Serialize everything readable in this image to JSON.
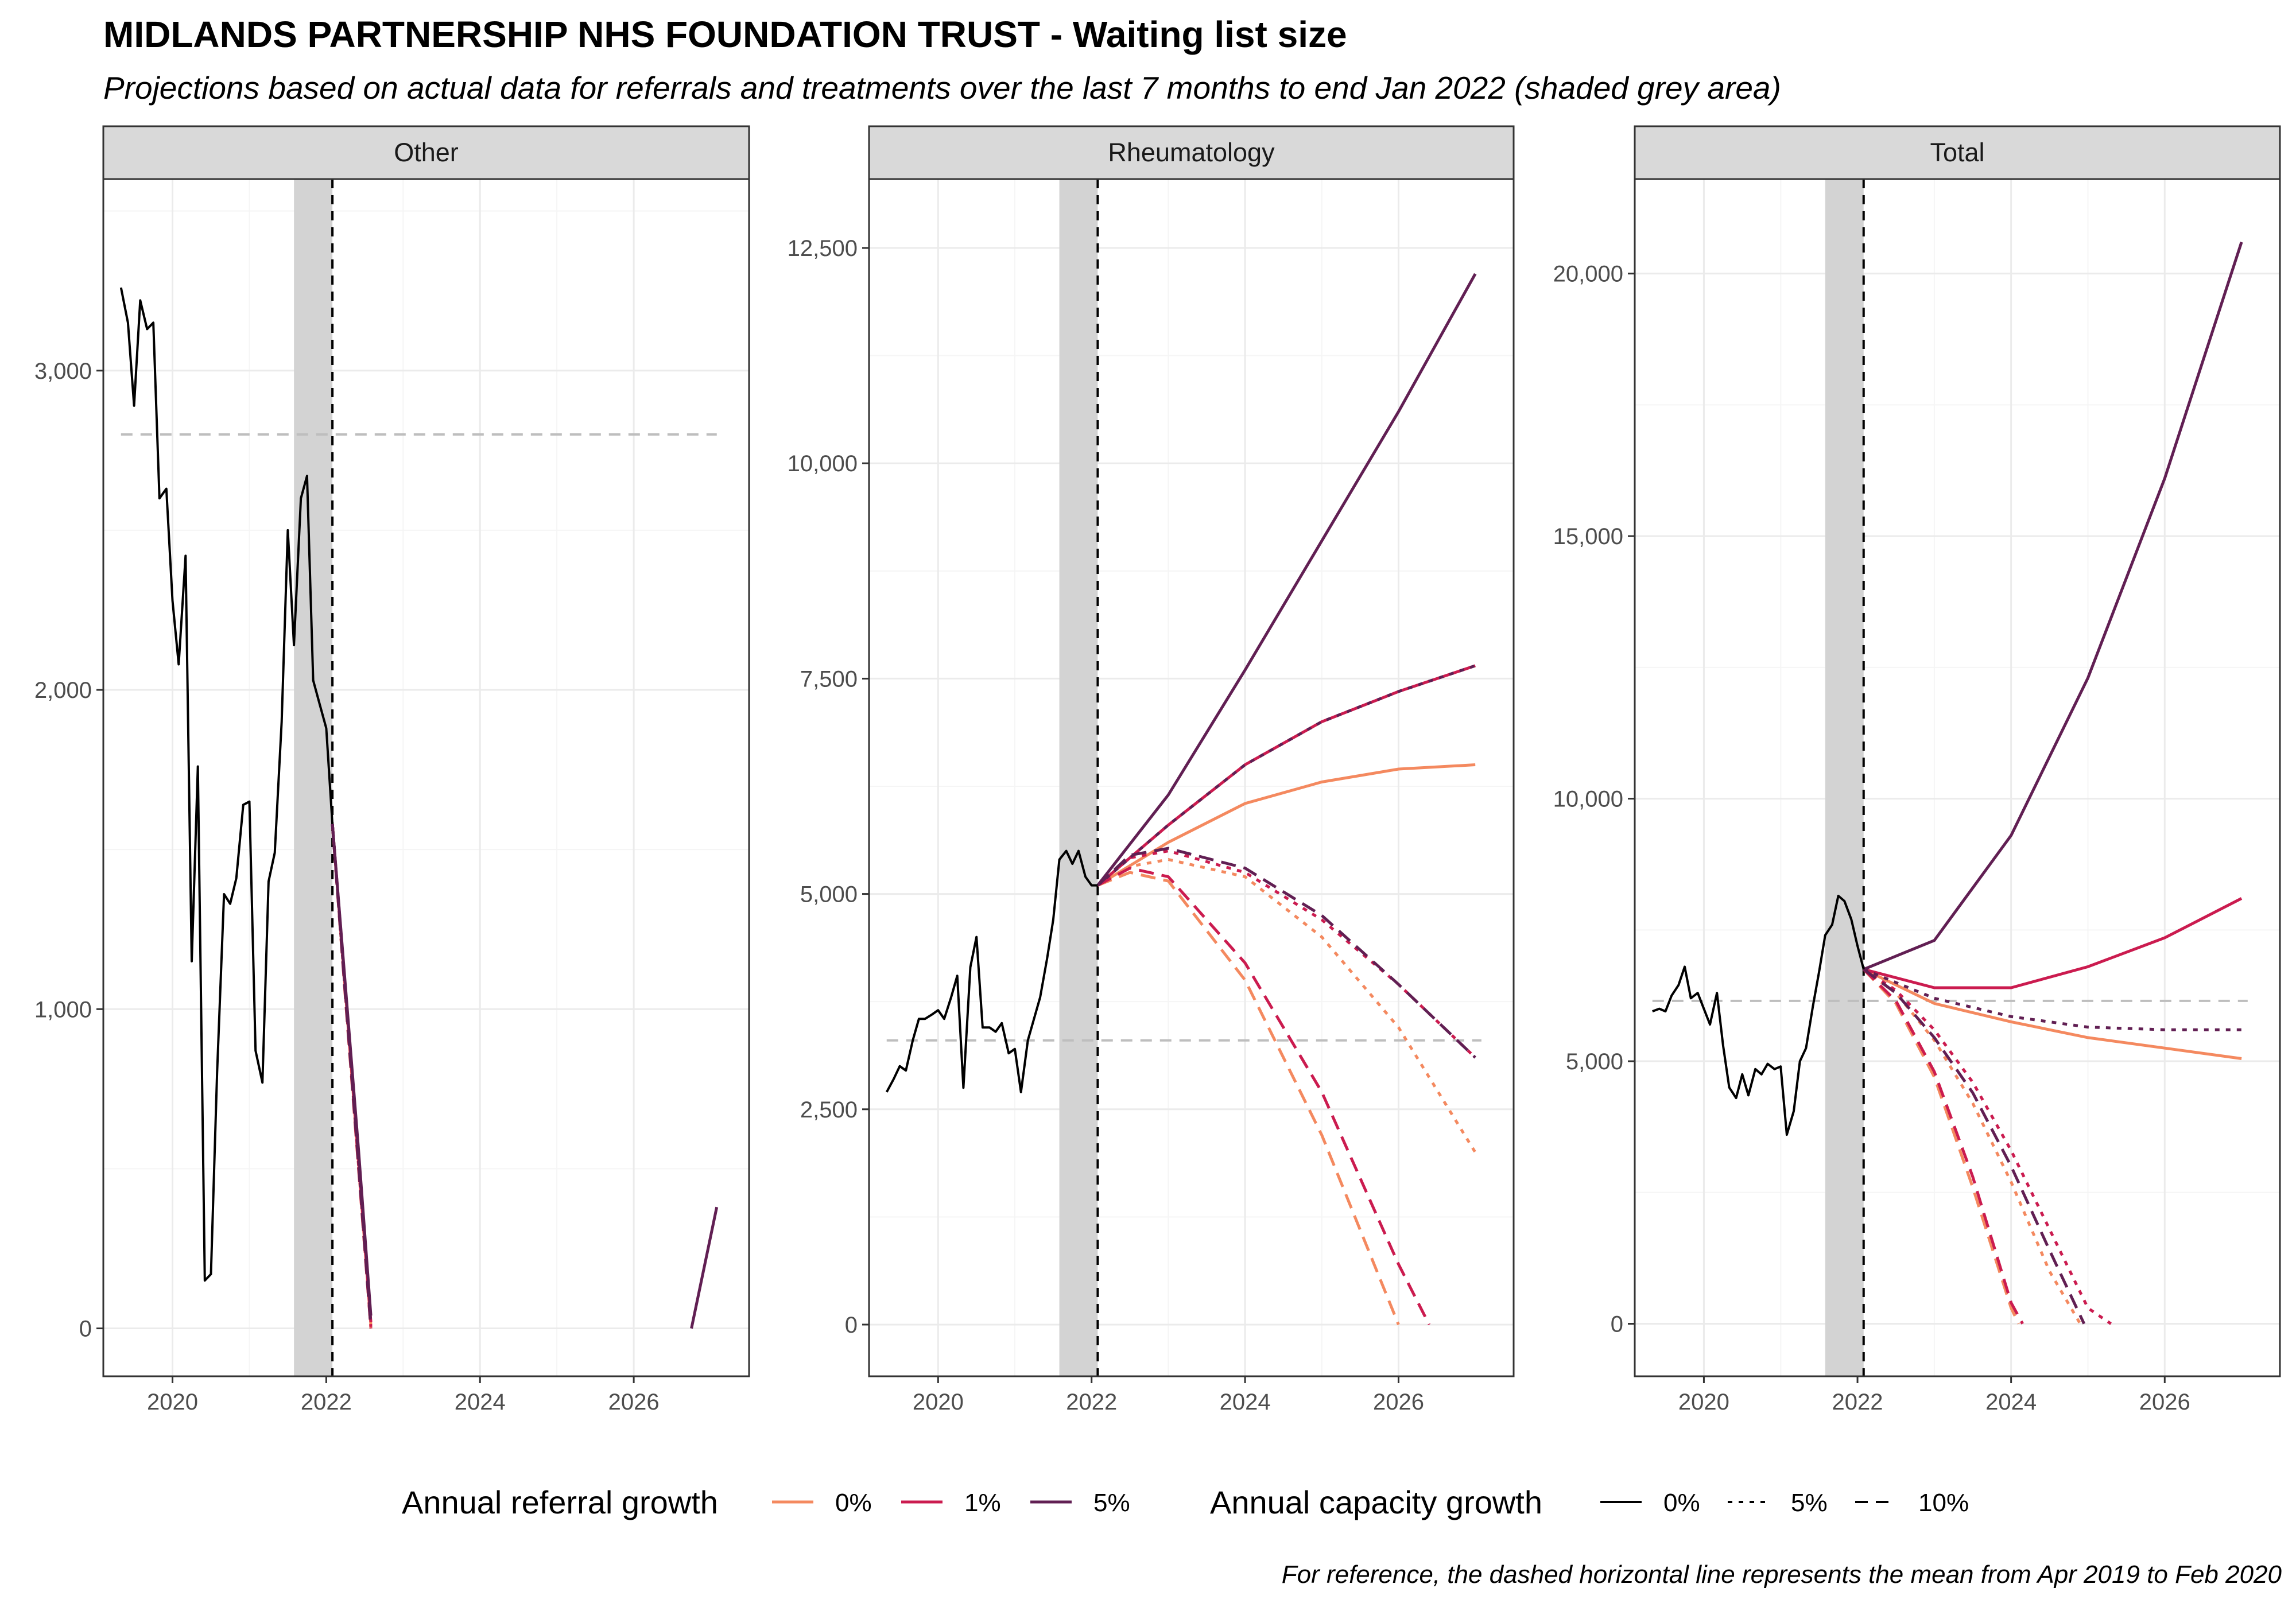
{
  "title": "MIDLANDS PARTNERSHIP NHS FOUNDATION TRUST - Waiting list size",
  "subtitle": "Projections based on actual data for referrals and treatments over the last 7 months to end Jan 2022 (shaded grey area)",
  "caption": "For reference, the dashed horizontal line represents the mean from Apr 2019 to Feb 2020",
  "colors": {
    "referral_0": "#F4895F",
    "referral_1": "#CB1B4F",
    "referral_5": "#611F53",
    "observed": "#000000",
    "reference_line": "#BEBEBE",
    "shade": "#D3D3D3",
    "strip_fill": "#D9D9D9",
    "grid_major": "#EBEBEB",
    "grid_minor": "#F5F5F5"
  },
  "legend": {
    "referral_title": "Annual referral growth",
    "referral_items": [
      {
        "label": "0%",
        "color": "#F4895F"
      },
      {
        "label": "1%",
        "color": "#CB1B4F"
      },
      {
        "label": "5%",
        "color": "#611F53"
      }
    ],
    "capacity_title": "Annual capacity growth",
    "capacity_items": [
      {
        "label": "0%",
        "linetype": "solid"
      },
      {
        "label": "5%",
        "linetype": "dotted"
      },
      {
        "label": "10%",
        "linetype": "dashed"
      }
    ]
  },
  "chart_data": [
    {
      "type": "line",
      "facet": "Other",
      "xlim": [
        2019.1,
        2027.5
      ],
      "ylim": [
        -150,
        3600
      ],
      "x_ticks": [
        {
          "value": 2020,
          "label": "2020"
        },
        {
          "value": 2022,
          "label": "2022"
        },
        {
          "value": 2024,
          "label": "2024"
        },
        {
          "value": 2026,
          "label": "2026"
        }
      ],
      "y_ticks": [
        {
          "value": 0,
          "label": "0"
        },
        {
          "value": 1000,
          "label": "1,000"
        },
        {
          "value": 2000,
          "label": "2,000"
        },
        {
          "value": 3000,
          "label": "3,000"
        }
      ],
      "shaded_period": [
        2021.58,
        2022.08
      ],
      "projection_start": 2022.08,
      "reference_mean": 2800,
      "observed": {
        "x": [
          2019.33,
          2019.42,
          2019.5,
          2019.58,
          2019.67,
          2019.75,
          2019.83,
          2019.92,
          2020.0,
          2020.08,
          2020.17,
          2020.25,
          2020.33,
          2020.42,
          2020.5,
          2020.58,
          2020.67,
          2020.75,
          2020.83,
          2020.92,
          2021.0,
          2021.08,
          2021.17,
          2021.25,
          2021.33,
          2021.42,
          2021.5,
          2021.58,
          2021.67,
          2021.75,
          2021.83,
          2021.92,
          2022.0,
          2022.08
        ],
        "y": [
          3260,
          3150,
          2890,
          3220,
          3130,
          3150,
          2600,
          2630,
          2280,
          2080,
          2420,
          1150,
          1760,
          150,
          170,
          800,
          1360,
          1330,
          1410,
          1640,
          1650,
          870,
          770,
          1400,
          1490,
          1900,
          2500,
          2140,
          2600,
          2670,
          2030,
          1950,
          1880,
          1580
        ]
      },
      "projections": [
        {
          "referral_growth": "0%",
          "capacity_growth": "0%",
          "x": [
            2022.08,
            2022.25,
            2022.42,
            2022.58
          ],
          "y": [
            1580,
            1050,
            520,
            10
          ]
        },
        {
          "referral_growth": "0%",
          "capacity_growth": "5%",
          "x": [
            2022.08,
            2022.25,
            2022.42,
            2022.58
          ],
          "y": [
            1580,
            1040,
            510,
            0
          ]
        },
        {
          "referral_growth": "0%",
          "capacity_growth": "10%",
          "x": [
            2022.08,
            2022.25,
            2022.42,
            2022.58
          ],
          "y": [
            1580,
            1030,
            500,
            0
          ]
        },
        {
          "referral_growth": "1%",
          "capacity_growth": "0%",
          "x": [
            2022.08,
            2022.25,
            2022.42,
            2022.58
          ],
          "y": [
            1580,
            1060,
            530,
            20
          ]
        },
        {
          "referral_growth": "1%",
          "capacity_growth": "5%",
          "x": [
            2022.08,
            2022.25,
            2022.42,
            2022.58
          ],
          "y": [
            1580,
            1045,
            515,
            5
          ]
        },
        {
          "referral_growth": "1%",
          "capacity_growth": "10%",
          "x": [
            2022.08,
            2022.25,
            2022.42,
            2022.58
          ],
          "y": [
            1580,
            1035,
            505,
            0
          ]
        },
        {
          "referral_growth": "5%",
          "capacity_growth": "0%",
          "x": [
            2022.08,
            2022.25,
            2022.42,
            2022.58
          ],
          "y": [
            1580,
            1070,
            560,
            40
          ]
        },
        {
          "referral_growth": "5%",
          "capacity_growth": "5%",
          "x": [
            2022.08,
            2022.25,
            2022.42,
            2022.58
          ],
          "y": [
            1580,
            1050,
            530,
            15
          ]
        },
        {
          "referral_growth": "5%",
          "capacity_growth": "10%",
          "x": [
            2022.08,
            2022.25,
            2022.42,
            2022.58
          ],
          "y": [
            1580,
            1040,
            515,
            5
          ]
        },
        {
          "referral_growth": "5%",
          "capacity_growth": "0%",
          "x": [
            2026.75,
            2027.08
          ],
          "y": [
            0,
            380
          ]
        }
      ]
    },
    {
      "type": "line",
      "facet": "Rheumatology",
      "xlim": [
        2019.1,
        2027.5
      ],
      "ylim": [
        -600,
        13300
      ],
      "x_ticks": [
        {
          "value": 2020,
          "label": "2020"
        },
        {
          "value": 2022,
          "label": "2022"
        },
        {
          "value": 2024,
          "label": "2024"
        },
        {
          "value": 2026,
          "label": "2026"
        }
      ],
      "y_ticks": [
        {
          "value": 0,
          "label": "0"
        },
        {
          "value": 2500,
          "label": "2,500"
        },
        {
          "value": 5000,
          "label": "5,000"
        },
        {
          "value": 7500,
          "label": "7,500"
        },
        {
          "value": 10000,
          "label": "10,000"
        },
        {
          "value": 12500,
          "label": "12,500"
        }
      ],
      "shaded_period": [
        2021.58,
        2022.08
      ],
      "projection_start": 2022.08,
      "reference_mean": 3300,
      "observed": {
        "x": [
          2019.33,
          2019.42,
          2019.5,
          2019.58,
          2019.67,
          2019.75,
          2019.83,
          2019.92,
          2020.0,
          2020.08,
          2020.17,
          2020.25,
          2020.33,
          2020.42,
          2020.5,
          2020.58,
          2020.67,
          2020.75,
          2020.83,
          2020.92,
          2021.0,
          2021.08,
          2021.17,
          2021.25,
          2021.33,
          2021.42,
          2021.5,
          2021.58,
          2021.67,
          2021.75,
          2021.83,
          2021.92,
          2022.0,
          2022.08
        ],
        "y": [
          2700,
          2850,
          3000,
          2950,
          3300,
          3550,
          3550,
          3600,
          3650,
          3550,
          3800,
          4050,
          2750,
          4150,
          4500,
          3450,
          3450,
          3400,
          3500,
          3150,
          3200,
          2700,
          3300,
          3550,
          3800,
          4250,
          4700,
          5400,
          5500,
          5350,
          5500,
          5200,
          5100,
          5100
        ]
      },
      "projections": [
        {
          "referral_growth": "0%",
          "capacity_growth": "0%",
          "x": [
            2022.08,
            2023,
            2024,
            2025,
            2026,
            2027
          ],
          "y": [
            5100,
            5600,
            6050,
            6300,
            6450,
            6500
          ]
        },
        {
          "referral_growth": "0%",
          "capacity_growth": "5%",
          "x": [
            2022.08,
            2022.5,
            2023,
            2024,
            2025,
            2026,
            2027
          ],
          "y": [
            5100,
            5320,
            5400,
            5200,
            4500,
            3450,
            2000
          ]
        },
        {
          "referral_growth": "0%",
          "capacity_growth": "10%",
          "x": [
            2022.08,
            2022.5,
            2023,
            2024,
            2025,
            2026
          ],
          "y": [
            5100,
            5250,
            5150,
            4000,
            2200,
            0
          ]
        },
        {
          "referral_growth": "1%",
          "capacity_growth": "0%",
          "x": [
            2022.08,
            2023,
            2024,
            2025,
            2026,
            2027
          ],
          "y": [
            5100,
            5800,
            6500,
            7000,
            7350,
            7650
          ]
        },
        {
          "referral_growth": "1%",
          "capacity_growth": "5%",
          "x": [
            2022.08,
            2022.5,
            2023,
            2024,
            2025,
            2026,
            2027
          ],
          "y": [
            5100,
            5420,
            5500,
            5250,
            4700,
            3950,
            3100
          ]
        },
        {
          "referral_growth": "1%",
          "capacity_growth": "10%",
          "x": [
            2022.08,
            2022.5,
            2023,
            2024,
            2025,
            2026,
            2026.4
          ],
          "y": [
            5100,
            5300,
            5200,
            4200,
            2700,
            700,
            0
          ]
        },
        {
          "referral_growth": "5%",
          "capacity_growth": "0%",
          "x": [
            2022.08,
            2023,
            2024,
            2025,
            2026,
            2027
          ],
          "y": [
            5100,
            6150,
            7600,
            9100,
            10600,
            12200
          ]
        },
        {
          "referral_growth": "5%",
          "capacity_growth": "5%",
          "x": [
            2022.08,
            2023,
            2024,
            2025,
            2026,
            2027
          ],
          "y": [
            5100,
            5800,
            6500,
            7000,
            7350,
            7650
          ]
        },
        {
          "referral_growth": "5%",
          "capacity_growth": "10%",
          "x": [
            2022.08,
            2022.5,
            2023,
            2024,
            2025,
            2026,
            2027
          ],
          "y": [
            5100,
            5450,
            5530,
            5300,
            4750,
            3950,
            3100
          ]
        }
      ]
    },
    {
      "type": "line",
      "facet": "Total",
      "xlim": [
        2019.1,
        2027.5
      ],
      "ylim": [
        -1000,
        21800
      ],
      "x_ticks": [
        {
          "value": 2020,
          "label": "2020"
        },
        {
          "value": 2022,
          "label": "2022"
        },
        {
          "value": 2024,
          "label": "2024"
        },
        {
          "value": 2026,
          "label": "2026"
        }
      ],
      "y_ticks": [
        {
          "value": 0,
          "label": "0"
        },
        {
          "value": 5000,
          "label": "5,000"
        },
        {
          "value": 10000,
          "label": "10,000"
        },
        {
          "value": 15000,
          "label": "15,000"
        },
        {
          "value": 20000,
          "label": "20,000"
        }
      ],
      "shaded_period": [
        2021.58,
        2022.08
      ],
      "projection_start": 2022.08,
      "reference_mean": 6150,
      "observed": {
        "x": [
          2019.33,
          2019.42,
          2019.5,
          2019.58,
          2019.67,
          2019.75,
          2019.83,
          2019.92,
          2020.0,
          2020.08,
          2020.17,
          2020.25,
          2020.33,
          2020.42,
          2020.5,
          2020.58,
          2020.67,
          2020.75,
          2020.83,
          2020.92,
          2021.0,
          2021.08,
          2021.17,
          2021.25,
          2021.33,
          2021.42,
          2021.5,
          2021.58,
          2021.67,
          2021.75,
          2021.83,
          2021.92,
          2022.0,
          2022.08
        ],
        "y": [
          5950,
          6000,
          5950,
          6250,
          6450,
          6800,
          6200,
          6300,
          6000,
          5700,
          6300,
          5300,
          4500,
          4300,
          4750,
          4350,
          4850,
          4750,
          4950,
          4850,
          4900,
          3600,
          4050,
          5000,
          5250,
          6050,
          6700,
          7400,
          7600,
          8150,
          8050,
          7700,
          7200,
          6750
        ]
      },
      "projections": [
        {
          "referral_growth": "0%",
          "capacity_growth": "0%",
          "x": [
            2022.08,
            2023,
            2024,
            2025,
            2026,
            2027
          ],
          "y": [
            6750,
            6100,
            5750,
            5450,
            5250,
            5050
          ]
        },
        {
          "referral_growth": "0%",
          "capacity_growth": "5%",
          "x": [
            2022.08,
            2022.5,
            2023,
            2023.5,
            2024,
            2024.5,
            2024.9
          ],
          "y": [
            6750,
            6300,
            5400,
            4200,
            2700,
            1000,
            0
          ]
        },
        {
          "referral_growth": "0%",
          "capacity_growth": "10%",
          "x": [
            2022.08,
            2022.5,
            2023,
            2023.5,
            2024,
            2024.1
          ],
          "y": [
            6750,
            6100,
            4700,
            2600,
            300,
            0
          ]
        },
        {
          "referral_growth": "1%",
          "capacity_growth": "0%",
          "x": [
            2022.08,
            2023,
            2024,
            2025,
            2026,
            2027
          ],
          "y": [
            6750,
            6400,
            6400,
            6800,
            7350,
            8100
          ]
        },
        {
          "referral_growth": "1%",
          "capacity_growth": "5%",
          "x": [
            2022.08,
            2022.5,
            2023,
            2023.5,
            2024,
            2024.5,
            2025,
            2025.3
          ],
          "y": [
            6750,
            6350,
            5600,
            4600,
            3300,
            1800,
            300,
            0
          ]
        },
        {
          "referral_growth": "1%",
          "capacity_growth": "10%",
          "x": [
            2022.08,
            2022.5,
            2023,
            2023.5,
            2024,
            2024.15
          ],
          "y": [
            6750,
            6150,
            4800,
            2800,
            400,
            0
          ]
        },
        {
          "referral_growth": "5%",
          "capacity_growth": "0%",
          "x": [
            2022.08,
            2023,
            2024,
            2025,
            2026,
            2027
          ],
          "y": [
            6750,
            7300,
            9300,
            12300,
            16100,
            20600
          ]
        },
        {
          "referral_growth": "5%",
          "capacity_growth": "5%",
          "x": [
            2022.08,
            2023,
            2024,
            2025,
            2026,
            2027
          ],
          "y": [
            6750,
            6200,
            5850,
            5650,
            5600,
            5600
          ]
        },
        {
          "referral_growth": "5%",
          "capacity_growth": "10%",
          "x": [
            2022.08,
            2022.5,
            2023,
            2023.5,
            2024,
            2024.5,
            2024.95
          ],
          "y": [
            6750,
            6300,
            5450,
            4400,
            3000,
            1400,
            0
          ]
        }
      ]
    }
  ]
}
